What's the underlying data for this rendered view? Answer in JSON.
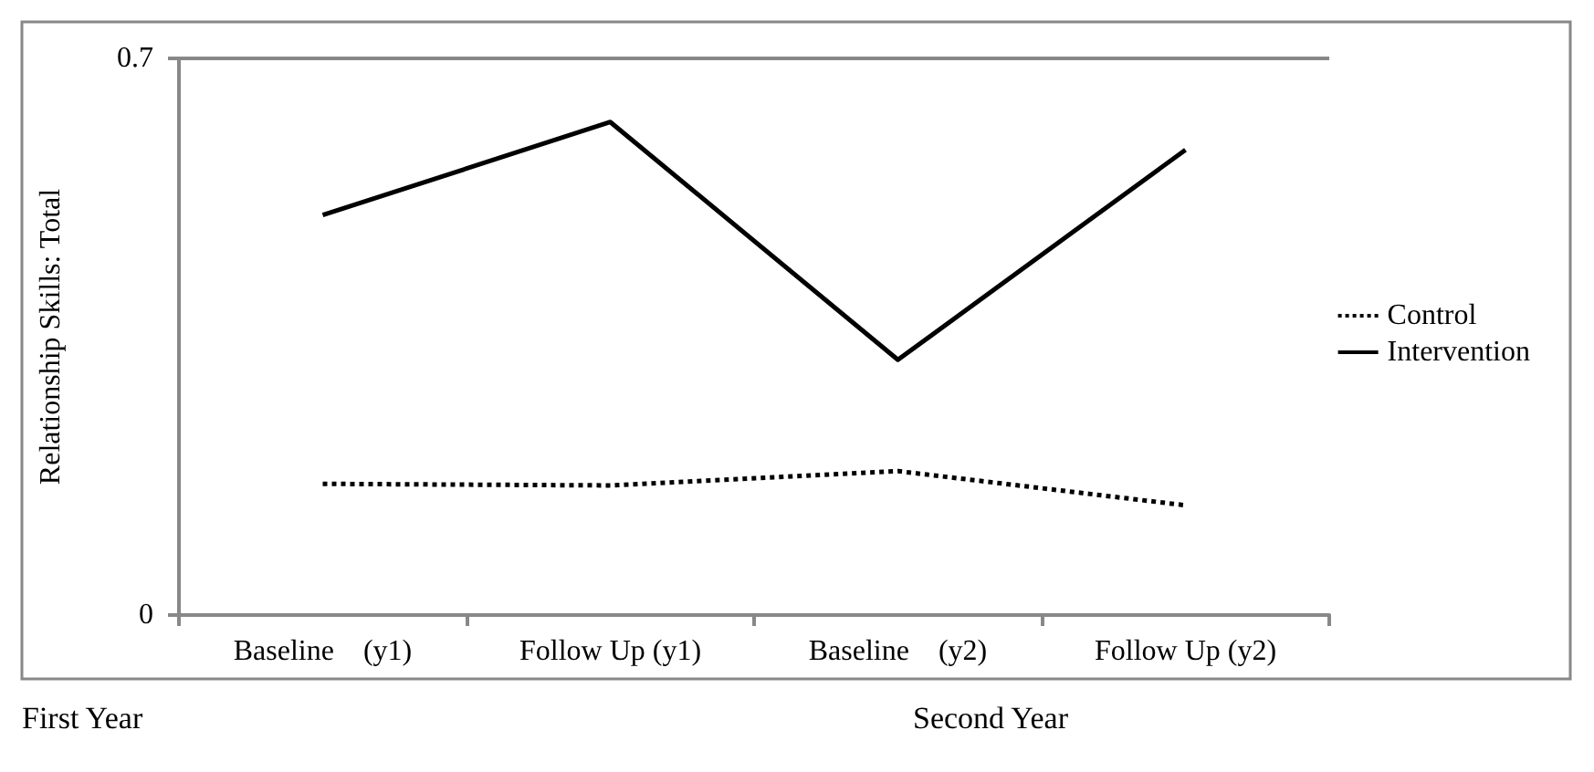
{
  "chart_data": {
    "type": "line",
    "ylabel": "Relationship Skills: Total",
    "categories": [
      "Baseline    (y1)",
      "Follow Up (y1)",
      "Baseline    (y2)",
      "Follow Up (y2)"
    ],
    "series": [
      {
        "name": "Control",
        "color": "#000000",
        "line_style": "dotted",
        "values": [
          0.165,
          0.163,
          0.181,
          0.138
        ]
      },
      {
        "name": "Intervention",
        "color": "#000000",
        "line_style": "solid",
        "values": [
          0.503,
          0.62,
          0.321,
          0.585
        ]
      }
    ],
    "ylim": [
      0,
      0.7
    ],
    "yticks": [
      0,
      0.7
    ],
    "legend": "right",
    "marker": "none",
    "annotations": [
      "First Year",
      "Second Year"
    ]
  }
}
